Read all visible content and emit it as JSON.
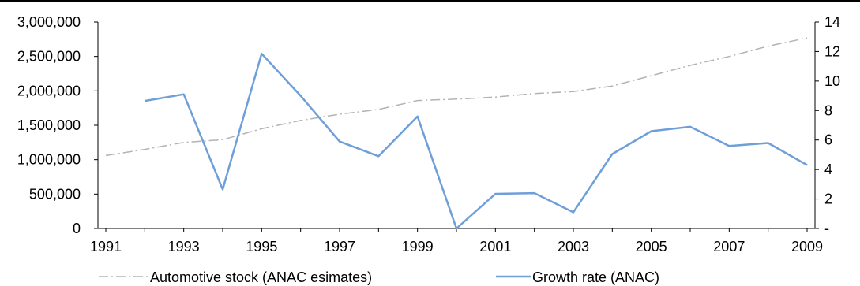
{
  "chart_data": {
    "type": "line",
    "title": "",
    "xlabel": "",
    "ylabel": "",
    "y2label": "",
    "x": [
      1991,
      1992,
      1993,
      1994,
      1995,
      1996,
      1997,
      1998,
      1999,
      2000,
      2001,
      2002,
      2003,
      2004,
      2005,
      2006,
      2007,
      2008,
      2009
    ],
    "x_tick_labels": [
      "1991",
      "1993",
      "1995",
      "1997",
      "1999",
      "2001",
      "2003",
      "2005",
      "2007",
      "2009"
    ],
    "ylim": [
      0,
      3000000
    ],
    "y_tick_labels": [
      "0",
      "500,000",
      "1,000,000",
      "1,500,000",
      "2,000,000",
      "2,500,000",
      "3,000,000"
    ],
    "y2lim": [
      0,
      14
    ],
    "y2_tick_labels": [
      "-",
      "2",
      "4",
      "6",
      "8",
      "10",
      "12",
      "14"
    ],
    "grid": false,
    "legend_position": "bottom",
    "series": [
      {
        "name": "Automotive stock (ANAC esimates)",
        "axis": "left",
        "color": "#b3b3b3",
        "style": "dash-dot",
        "values": [
          1060000,
          1150000,
          1250000,
          1290000,
          1450000,
          1570000,
          1660000,
          1730000,
          1860000,
          1880000,
          1910000,
          1960000,
          1990000,
          2070000,
          2220000,
          2370000,
          2500000,
          2650000,
          2770000
        ]
      },
      {
        "name": "Growth rate (ANAC)",
        "axis": "right",
        "color": "#6f9fd8",
        "style": "solid",
        "values": [
          null,
          8.65,
          9.1,
          2.65,
          11.85,
          9.0,
          5.9,
          4.9,
          7.6,
          0.0,
          2.35,
          2.4,
          1.1,
          5.05,
          6.6,
          6.9,
          5.6,
          5.8,
          4.3
        ]
      }
    ]
  }
}
